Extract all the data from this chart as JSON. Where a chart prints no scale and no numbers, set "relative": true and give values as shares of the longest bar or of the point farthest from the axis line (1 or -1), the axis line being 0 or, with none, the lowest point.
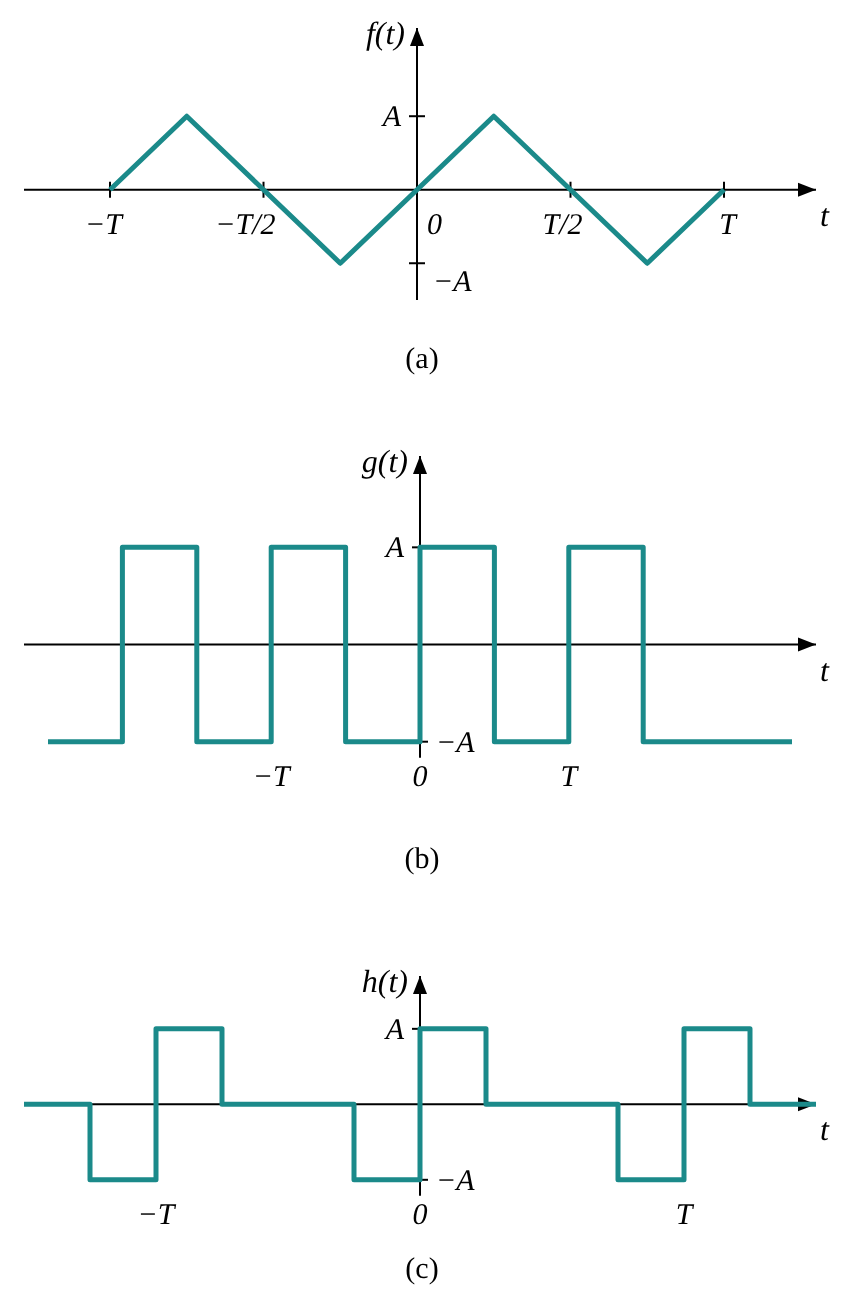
{
  "chart_data": [
    {
      "type": "line",
      "relative": true,
      "title": "(a)",
      "xlabel": "t",
      "ylabel": "f(t)",
      "color": "#1b8a8a",
      "categories": [
        "−T",
        null,
        "−T/2",
        null,
        "0",
        null,
        "T/2",
        null,
        "T"
      ],
      "values": [
        0,
        1,
        0,
        -1,
        0,
        1,
        0,
        -1,
        0
      ],
      "annotations": [
        "A",
        "−A"
      ]
    },
    {
      "type": "step",
      "relative": true,
      "title": "(b)",
      "xlabel": "t",
      "ylabel": "g(t)",
      "color": "#1b8a8a",
      "categories": [
        null,
        null,
        null,
        "−T",
        null,
        "0",
        null,
        "T",
        null,
        null,
        null
      ],
      "values": [
        -1,
        1,
        -1,
        1,
        -1,
        1,
        -1,
        1,
        -1,
        -1,
        -1
      ],
      "annotations": [
        "A",
        "−A"
      ]
    },
    {
      "type": "step",
      "relative": true,
      "title": "(c)",
      "xlabel": "t",
      "ylabel": "h(t)",
      "color": "#1b8a8a",
      "categories": [
        null,
        null,
        "−T",
        null,
        null,
        null,
        "0",
        null,
        null,
        null,
        "T",
        null,
        null
      ],
      "values": [
        0,
        -1,
        1,
        0,
        0,
        -1,
        1,
        0,
        0,
        -1,
        1,
        0,
        0
      ],
      "annotations": [
        "A",
        "−A"
      ]
    }
  ]
}
